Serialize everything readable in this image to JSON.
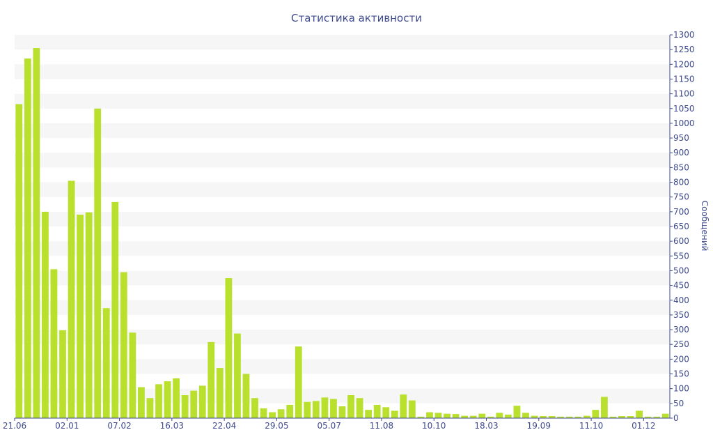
{
  "chart_data": {
    "type": "bar",
    "title": "Статистика активности",
    "ylabel": "Сообщений",
    "ylim": [
      0,
      1300
    ],
    "yticks": [
      0,
      50,
      100,
      150,
      200,
      250,
      300,
      350,
      400,
      450,
      500,
      550,
      600,
      650,
      700,
      750,
      800,
      850,
      900,
      950,
      1000,
      1050,
      1100,
      1150,
      1200,
      1250,
      1300
    ],
    "x_tick_labels": [
      {
        "index": 0,
        "label": "21.06"
      },
      {
        "index": 6,
        "label": "02.01"
      },
      {
        "index": 12,
        "label": "07.02"
      },
      {
        "index": 18,
        "label": "16.03"
      },
      {
        "index": 24,
        "label": "22.04"
      },
      {
        "index": 30,
        "label": "29.05"
      },
      {
        "index": 36,
        "label": "05.07"
      },
      {
        "index": 42,
        "label": "11.08"
      },
      {
        "index": 48,
        "label": "10.10"
      },
      {
        "index": 54,
        "label": "18.03"
      },
      {
        "index": 60,
        "label": "19.09"
      },
      {
        "index": 66,
        "label": "11.10"
      },
      {
        "index": 72,
        "label": "01.12"
      }
    ],
    "values": [
      1065,
      1220,
      1255,
      700,
      505,
      298,
      805,
      690,
      698,
      1050,
      373,
      733,
      495,
      290,
      105,
      68,
      115,
      125,
      135,
      78,
      93,
      110,
      258,
      170,
      475,
      287,
      150,
      68,
      33,
      20,
      30,
      45,
      243,
      55,
      58,
      70,
      65,
      40,
      78,
      68,
      28,
      45,
      37,
      25,
      80,
      60,
      5,
      20,
      18,
      15,
      14,
      8,
      8,
      15,
      5,
      18,
      12,
      42,
      18,
      8,
      7,
      7,
      5,
      5,
      5,
      8,
      28,
      72,
      5,
      7,
      7,
      25,
      5,
      5,
      15
    ],
    "grid": true,
    "colors": {
      "bar": "#b8e02c",
      "text": "#3e4a8e",
      "band": "#f6f6f6",
      "axis": "#3e4a8e"
    }
  }
}
